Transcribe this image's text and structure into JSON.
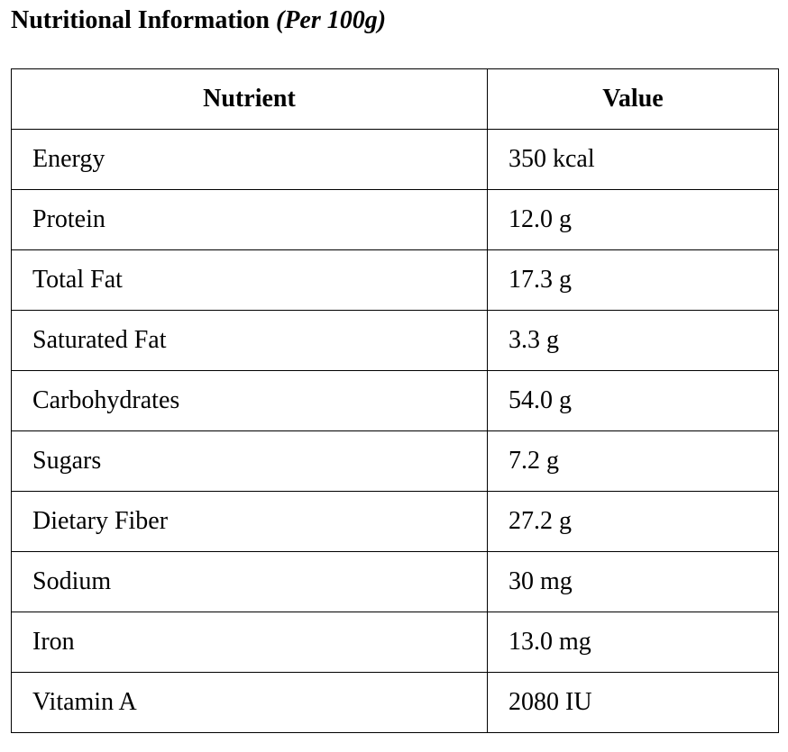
{
  "document": {
    "title": "Nutritional Information",
    "subtitle": "(Per 100g)"
  },
  "table": {
    "headers": [
      "Nutrient",
      "Value"
    ],
    "rows": [
      {
        "nutrient": "Energy",
        "value": "350 kcal"
      },
      {
        "nutrient": "Protein",
        "value": "12.0 g"
      },
      {
        "nutrient": "Total Fat",
        "value": "17.3 g"
      },
      {
        "nutrient": "Saturated Fat",
        "value": "3.3 g"
      },
      {
        "nutrient": "Carbohydrates",
        "value": "54.0 g"
      },
      {
        "nutrient": "Sugars",
        "value": "7.2 g"
      },
      {
        "nutrient": "Dietary Fiber",
        "value": "27.2 g"
      },
      {
        "nutrient": "Sodium",
        "value": "30 mg"
      },
      {
        "nutrient": "Iron",
        "value": "13.0 mg"
      },
      {
        "nutrient": "Vitamin A",
        "value": "2080 IU"
      }
    ]
  }
}
